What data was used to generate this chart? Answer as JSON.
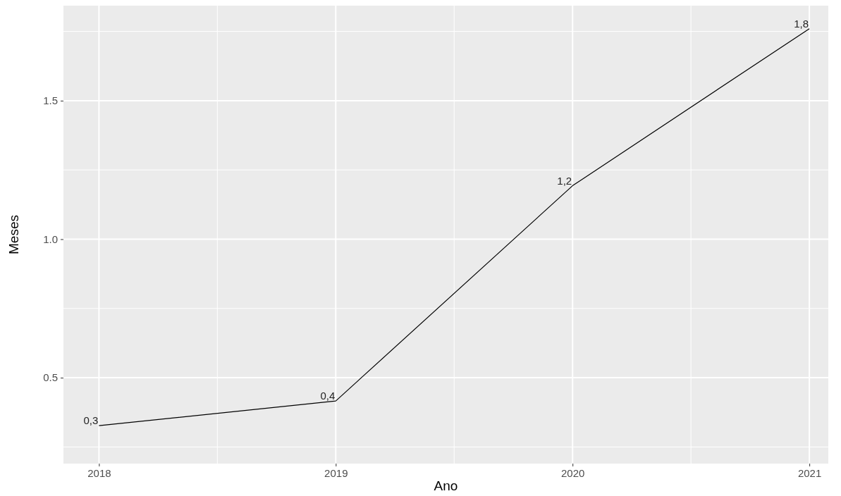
{
  "chart_data": {
    "type": "line",
    "xlabel": "Ano",
    "ylabel": "Meses",
    "x": [
      2018,
      2019,
      2020,
      2021
    ],
    "series": [
      {
        "color": "#000000",
        "values": [
          0.327,
          0.416,
          1.193,
          1.76
        ],
        "value_labels": [
          "0,3",
          "0,4",
          "1,2",
          "1,8"
        ]
      }
    ],
    "xlim": [
      2017.85,
      2021.08
    ],
    "xticks": [
      2018,
      2019,
      2020,
      2021
    ],
    "ylim": [
      0.19,
      1.843
    ],
    "yticks": [
      {
        "value": 0.5,
        "label": "0.5"
      },
      {
        "value": 1.0,
        "label": "1.0"
      },
      {
        "value": 1.5,
        "label": "1.5"
      }
    ],
    "grid": true,
    "marker": "none",
    "line_style": "solid"
  }
}
